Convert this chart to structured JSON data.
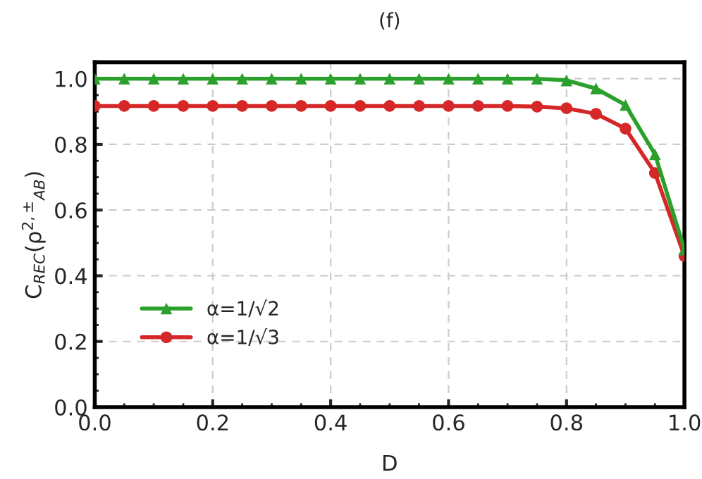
{
  "chart_data": {
    "type": "line",
    "title": "(f)",
    "xlabel": "D",
    "ylabel": "C$_{REC}$(ρ$^{2,±}$$_{AB}$)",
    "x": [
      0.0,
      0.05,
      0.1,
      0.15,
      0.2,
      0.25,
      0.3,
      0.35,
      0.4,
      0.45,
      0.5,
      0.55,
      0.6,
      0.65,
      0.7,
      0.75,
      0.8,
      0.85,
      0.9,
      0.95,
      1.0
    ],
    "series": [
      {
        "name": "α=1/√2",
        "color": "#2ca02c",
        "marker": "triangle",
        "values": [
          1.0,
          1.0,
          1.0,
          1.0,
          1.0,
          1.0,
          1.0,
          1.0,
          1.0,
          1.0,
          1.0,
          1.0,
          1.0,
          1.0,
          1.0,
          1.0,
          0.995,
          0.97,
          0.92,
          0.77,
          0.48
        ]
      },
      {
        "name": "α=1/√3",
        "color": "#d62728",
        "marker": "circle",
        "values": [
          0.917,
          0.917,
          0.917,
          0.917,
          0.917,
          0.917,
          0.917,
          0.917,
          0.917,
          0.917,
          0.917,
          0.917,
          0.917,
          0.917,
          0.917,
          0.915,
          0.91,
          0.893,
          0.848,
          0.713,
          0.46
        ]
      }
    ],
    "xlim": [
      0.0,
      1.0
    ],
    "ylim": [
      0.0,
      1.05
    ],
    "xticks": [
      {
        "value": 0,
        "label": "0.0"
      },
      0.2,
      0.4,
      0.6,
      0.8,
      {
        "value": 1,
        "label": "1.0"
      }
    ],
    "yticks": [
      {
        "value": 0,
        "label": "0.0"
      },
      0.2,
      0.4,
      0.6,
      0.8,
      {
        "value": 1,
        "label": "1.0"
      }
    ],
    "grid": true,
    "legend": "lower left",
    "line_style": "solid"
  }
}
